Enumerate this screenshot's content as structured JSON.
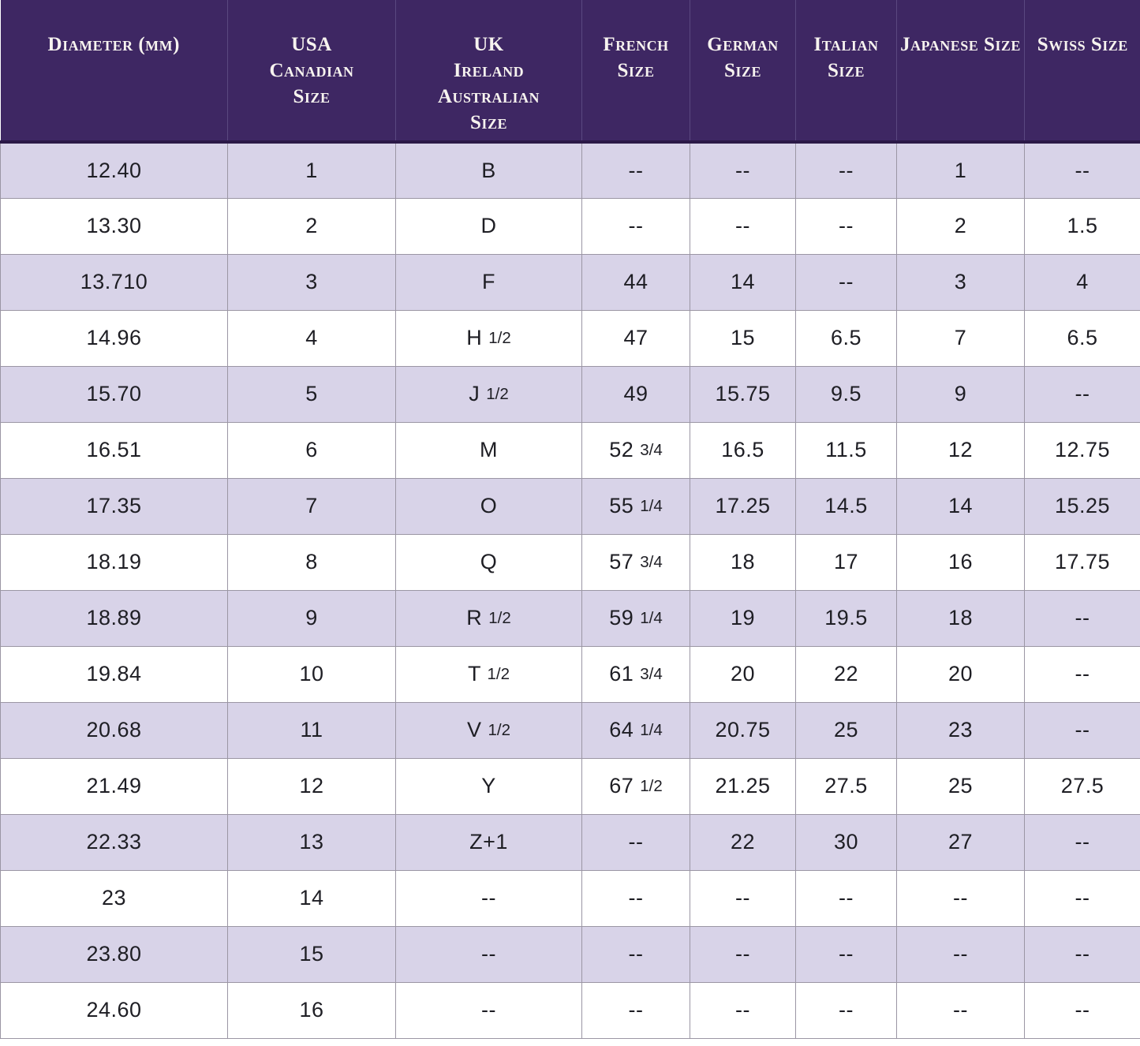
{
  "style": {
    "header_bg": "#3e2763",
    "header_text": "#f7f3ef",
    "header_divider": "#5a4880",
    "header_bottom_line": "#2b1947",
    "row_alt_bg": "#d8d3e8",
    "row_bg": "#ffffff",
    "grid_line": "#9b96a4",
    "body_text": "#1e1e24"
  },
  "chart_data": {
    "type": "table",
    "empty_marker": "--",
    "columns": [
      {
        "id": "diameter-mm",
        "header_lines": [
          "Diameter (mm)"
        ]
      },
      {
        "id": "usa-canadian-size",
        "header_lines": [
          "USA",
          "Canadian",
          "Size"
        ]
      },
      {
        "id": "uk-ireland-australian-size",
        "header_lines": [
          "UK",
          "Ireland",
          "Australian",
          "Size"
        ]
      },
      {
        "id": "french-size",
        "header_lines": [
          "French",
          "Size"
        ]
      },
      {
        "id": "german-size",
        "header_lines": [
          "German",
          "Size"
        ]
      },
      {
        "id": "italian-size",
        "header_lines": [
          "Italian",
          "Size"
        ]
      },
      {
        "id": "japanese-size",
        "header_lines": [
          "Japanese Size"
        ]
      },
      {
        "id": "swiss-size",
        "header_lines": [
          "Swiss Size"
        ]
      }
    ],
    "rows": [
      [
        "12.40",
        "1",
        "B",
        "--",
        "--",
        "--",
        "1",
        "--"
      ],
      [
        "13.30",
        "2",
        "D",
        "--",
        "--",
        "--",
        "2",
        "1.5"
      ],
      [
        "13.710",
        "3",
        "F",
        "44",
        "14",
        "--",
        "3",
        "4"
      ],
      [
        "14.96",
        "4",
        "H 1/2",
        "47",
        "15",
        "6.5",
        "7",
        "6.5"
      ],
      [
        "15.70",
        "5",
        "J 1/2",
        "49",
        "15.75",
        "9.5",
        "9",
        "--"
      ],
      [
        "16.51",
        "6",
        "M",
        "52 3/4",
        "16.5",
        "11.5",
        "12",
        "12.75"
      ],
      [
        "17.35",
        "7",
        "O",
        "55 1/4",
        "17.25",
        "14.5",
        "14",
        "15.25"
      ],
      [
        "18.19",
        "8",
        "Q",
        "57 3/4",
        "18",
        "17",
        "16",
        "17.75"
      ],
      [
        "18.89",
        "9",
        "R 1/2",
        "59 1/4",
        "19",
        "19.5",
        "18",
        "--"
      ],
      [
        "19.84",
        "10",
        "T 1/2",
        "61 3/4",
        "20",
        "22",
        "20",
        "--"
      ],
      [
        "20.68",
        "11",
        "V 1/2",
        "64 1/4",
        "20.75",
        "25",
        "23",
        "--"
      ],
      [
        "21.49",
        "12",
        "Y",
        "67 1/2",
        "21.25",
        "27.5",
        "25",
        "27.5"
      ],
      [
        "22.33",
        "13",
        "Z+1",
        "--",
        "22",
        "30",
        "27",
        "--"
      ],
      [
        "23",
        "14",
        "--",
        "--",
        "--",
        "--",
        "--",
        "--"
      ],
      [
        "23.80",
        "15",
        "--",
        "--",
        "--",
        "--",
        "--",
        "--"
      ],
      [
        "24.60",
        "16",
        "--",
        "--",
        "--",
        "--",
        "--",
        "--"
      ]
    ]
  }
}
